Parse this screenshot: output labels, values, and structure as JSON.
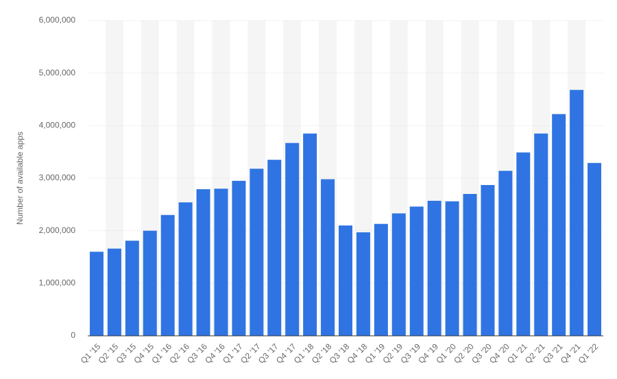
{
  "chart_data": {
    "type": "bar",
    "categories": [
      "Q1 '15",
      "Q2 '15",
      "Q3 '15",
      "Q4 '15",
      "Q1 '16",
      "Q2 '16",
      "Q3 '16",
      "Q4 '16",
      "Q1 '17",
      "Q2 '17",
      "Q3 '17",
      "Q4 '17",
      "Q1 '18",
      "Q2 '18",
      "Q3 '18",
      "Q4 '18",
      "Q1 '19",
      "Q2 '19",
      "Q3 '19",
      "Q4 '19",
      "Q1 '20",
      "Q2 '20",
      "Q3 '20",
      "Q4 '20",
      "Q1 '21",
      "Q2 '21",
      "Q3 '21",
      "Q4 '21",
      "Q1 '22"
    ],
    "values": [
      1600000,
      1660000,
      1810000,
      2000000,
      2300000,
      2540000,
      2790000,
      2800000,
      2950000,
      3180000,
      3350000,
      3670000,
      3850000,
      2980000,
      2100000,
      1970000,
      2130000,
      2330000,
      2460000,
      2570000,
      2560000,
      2700000,
      2870000,
      3140000,
      3490000,
      3850000,
      4220000,
      4680000,
      3290000
    ],
    "yticks": [
      "0",
      "1,000,000",
      "2,000,000",
      "3,000,000",
      "4,000,000",
      "5,000,000",
      "6,000,000"
    ],
    "ylabel": "Number of available apps",
    "xlabel": "",
    "title": "",
    "ylim": [
      0,
      6000000
    ],
    "grid": true,
    "alternating_bands": true,
    "bar_color": "#2f74e2",
    "band_color": "#f5f5f5",
    "grid_color": "#d9d9d9"
  }
}
